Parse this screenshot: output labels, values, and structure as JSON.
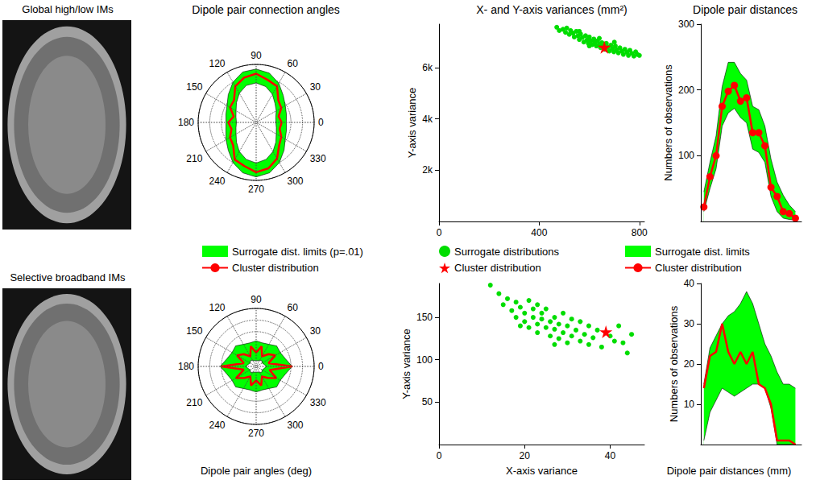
{
  "chart_data": [
    {
      "type": "image",
      "title": "Global high/low IMs"
    },
    {
      "type": "polar",
      "title": "Dipole pair connection angles",
      "x": [
        0,
        15,
        30,
        45,
        60,
        75,
        90,
        105,
        120,
        135,
        150,
        165,
        180,
        195,
        210,
        225,
        240,
        255,
        270,
        285,
        300,
        315,
        330,
        345
      ],
      "xlim": [
        0,
        360
      ],
      "xticks": [
        0,
        30,
        60,
        90,
        120,
        150,
        180,
        210,
        240,
        270,
        300,
        330
      ],
      "ylim": [
        0,
        100
      ],
      "yticks": [
        20,
        40,
        60,
        80,
        100
      ],
      "tick_labels": "x",
      "grid": true,
      "legend": "bottom",
      "series": [
        {
          "name": "Surrogate dist. limits (p=.01)",
          "type": "band",
          "color": "#00ff00",
          "lower": [
            34,
            35,
            40,
            46,
            56,
            64,
            68,
            66,
            58,
            48,
            40,
            36,
            34,
            36,
            40,
            48,
            58,
            66,
            70,
            66,
            58,
            48,
            40,
            36
          ],
          "upper": [
            52,
            54,
            58,
            66,
            78,
            88,
            92,
            90,
            80,
            68,
            58,
            54,
            52,
            54,
            60,
            68,
            80,
            90,
            94,
            90,
            80,
            68,
            58,
            54
          ]
        },
        {
          "name": "Cluster distribution",
          "type": "line",
          "color": "#ff0000",
          "marker": "none",
          "values": [
            44,
            40,
            50,
            54,
            72,
            76,
            84,
            80,
            72,
            54,
            52,
            40,
            48,
            44,
            52,
            56,
            74,
            78,
            86,
            82,
            72,
            56,
            50,
            42
          ]
        }
      ]
    },
    {
      "type": "scatter",
      "title": "X- and Y-axis variances (mm²)",
      "ylabel": "Y-axis variance",
      "xlim": [
        0,
        820
      ],
      "xticks": [
        0,
        400,
        800
      ],
      "ylim": [
        0,
        7700
      ],
      "yticks": [
        {
          "value": 2000,
          "label": "2k"
        },
        {
          "value": 4000,
          "label": "4k"
        },
        {
          "value": 6000,
          "label": "6k"
        }
      ],
      "legend": "bottom",
      "series": [
        {
          "name": "Surrogate distributions",
          "color": "#00dd00",
          "marker": "circle",
          "x": [
            470,
            480,
            495,
            505,
            510,
            520,
            525,
            535,
            540,
            548,
            555,
            560,
            565,
            572,
            578,
            585,
            590,
            596,
            600,
            606,
            612,
            618,
            622,
            628,
            633,
            640,
            645,
            650,
            655,
            662,
            668,
            674,
            680,
            686,
            692,
            698,
            704,
            710,
            716,
            722,
            730,
            736,
            742,
            750,
            756,
            762,
            770,
            778,
            785,
            792,
            800,
            640,
            600,
            700,
            560
          ],
          "values": [
            7580,
            7450,
            7500,
            7380,
            7550,
            7300,
            7450,
            7350,
            7200,
            7420,
            7250,
            7100,
            7320,
            7180,
            7000,
            7250,
            7080,
            6950,
            7200,
            7050,
            6900,
            7120,
            6980,
            6850,
            7050,
            6920,
            6780,
            6980,
            6850,
            6720,
            6950,
            6800,
            6650,
            6880,
            6750,
            6620,
            6850,
            6700,
            6580,
            6780,
            6650,
            6520,
            6720,
            6600,
            6480,
            6680,
            6560,
            6450,
            6620,
            6520,
            6480,
            7150,
            6850,
            7000,
            7420
          ]
        },
        {
          "name": "Cluster distribution",
          "color": "#ff0000",
          "marker": "star",
          "x": [
            660
          ],
          "values": [
            6800
          ]
        }
      ]
    },
    {
      "type": "line",
      "title": "Dipole pair distances",
      "ylabel": "Numbers of observations",
      "x": [
        5,
        15,
        25,
        35,
        45,
        55,
        65,
        75,
        85,
        95,
        105,
        115,
        125,
        135,
        145,
        155
      ],
      "xlim": [
        0,
        165
      ],
      "ylim": [
        0,
        300
      ],
      "yticks": [
        100,
        200,
        300
      ],
      "tick_labels": "y",
      "legend": "bottom",
      "series": [
        {
          "name": "Surrogate dist. limits",
          "type": "band",
          "color": "#00ff00",
          "lower": [
            15,
            50,
            80,
            145,
            165,
            172,
            158,
            150,
            110,
            105,
            90,
            38,
            15,
            5,
            3,
            2
          ],
          "upper": [
            45,
            90,
            130,
            205,
            242,
            242,
            225,
            215,
            175,
            170,
            145,
            95,
            60,
            40,
            25,
            15
          ]
        },
        {
          "name": "Cluster distribution",
          "type": "line",
          "color": "#ff0000",
          "marker": "circle",
          "values": [
            22,
            68,
            100,
            175,
            198,
            207,
            183,
            188,
            135,
            135,
            115,
            52,
            38,
            15,
            12,
            5
          ]
        }
      ]
    },
    {
      "type": "image",
      "title": "Selective broadband IMs"
    },
    {
      "type": "polar",
      "xlabel": "Dipole pair angles (deg)",
      "x": [
        0,
        15,
        30,
        45,
        60,
        75,
        90,
        105,
        120,
        135,
        150,
        165,
        180,
        195,
        210,
        225,
        240,
        255,
        270,
        285,
        300,
        315,
        330,
        345
      ],
      "xlim": [
        0,
        360
      ],
      "xticks": [
        0,
        30,
        60,
        90,
        120,
        150,
        180,
        210,
        240,
        270,
        300,
        330
      ],
      "ylim": [
        0,
        100
      ],
      "yticks": [
        20,
        40,
        60,
        80,
        100
      ],
      "tick_labels": "x",
      "grid": true,
      "series": [
        {
          "name": "Surrogate dist. limits (p=.01)",
          "type": "band",
          "color": "#00ff00",
          "lower": [
            18,
            14,
            12,
            14,
            12,
            10,
            10,
            10,
            12,
            14,
            12,
            14,
            18,
            14,
            12,
            14,
            12,
            10,
            10,
            10,
            12,
            14,
            12,
            14
          ],
          "upper": [
            62,
            52,
            48,
            50,
            44,
            42,
            44,
            42,
            44,
            50,
            48,
            52,
            62,
            52,
            48,
            50,
            44,
            42,
            44,
            42,
            44,
            50,
            48,
            52
          ]
        },
        {
          "name": "Cluster distribution",
          "type": "line",
          "color": "#ff0000",
          "marker": "none",
          "values": [
            62,
            22,
            38,
            30,
            20,
            36,
            24,
            36,
            20,
            30,
            38,
            22,
            60,
            22,
            40,
            28,
            20,
            34,
            24,
            34,
            20,
            28,
            40,
            24
          ]
        }
      ]
    },
    {
      "type": "scatter",
      "xlabel": "X-axis variance",
      "ylabel": "Y-axis variance",
      "xlim": [
        0,
        48
      ],
      "xticks": [
        0,
        20,
        40
      ],
      "ylim": [
        0,
        190
      ],
      "yticks": [
        50,
        100,
        150
      ],
      "series": [
        {
          "name": "Surrogate distributions",
          "color": "#00dd00",
          "marker": "circle",
          "x": [
            12,
            14,
            15,
            16,
            17,
            18,
            18,
            19,
            20,
            20,
            21,
            21,
            22,
            22,
            23,
            23,
            24,
            24,
            25,
            25,
            26,
            26,
            27,
            27,
            28,
            28,
            29,
            29,
            30,
            30,
            31,
            31,
            32,
            33,
            33,
            34,
            35,
            35,
            36,
            37,
            38,
            40,
            41,
            42,
            43,
            44,
            45,
            19,
            23,
            27
          ],
          "values": [
            188,
            178,
            165,
            172,
            158,
            168,
            150,
            162,
            145,
            155,
            170,
            138,
            150,
            160,
            142,
            132,
            155,
            148,
            138,
            160,
            145,
            128,
            150,
            136,
            142,
            125,
            155,
            132,
            140,
            120,
            148,
            128,
            135,
            122,
            145,
            130,
            118,
            140,
            126,
            135,
            115,
            128,
            122,
            140,
            120,
            108,
            130,
            140,
            165,
            118
          ]
        },
        {
          "name": "Cluster distribution",
          "color": "#ff0000",
          "marker": "star",
          "x": [
            39
          ],
          "values": [
            133
          ]
        }
      ]
    },
    {
      "type": "line",
      "xlabel": "Dipole pair distances (mm)",
      "ylabel": "Numbers of observations",
      "x": [
        5,
        15,
        25,
        35,
        45,
        55,
        65,
        75,
        85,
        95,
        105,
        115,
        125,
        135,
        145,
        155
      ],
      "xlim": [
        0,
        165
      ],
      "ylim": [
        0,
        40
      ],
      "yticks": [
        10,
        20,
        30,
        40
      ],
      "tick_labels": "y",
      "series": [
        {
          "name": "Surrogate dist. limits",
          "type": "band",
          "color": "#00ff00",
          "lower": [
            1,
            8,
            11,
            14,
            13,
            12,
            13,
            14,
            15,
            15,
            14,
            9,
            0,
            0,
            0,
            0
          ],
          "upper": [
            15,
            24,
            27,
            30,
            32,
            33,
            35,
            38,
            35,
            30,
            25,
            22,
            18,
            15,
            15,
            14
          ]
        },
        {
          "name": "Cluster distribution",
          "type": "line",
          "color": "#ff0000",
          "marker": "none",
          "values": [
            14,
            22,
            23,
            30,
            23,
            20,
            23,
            20,
            23,
            15,
            14,
            10,
            1,
            1,
            1,
            0
          ]
        }
      ]
    }
  ]
}
